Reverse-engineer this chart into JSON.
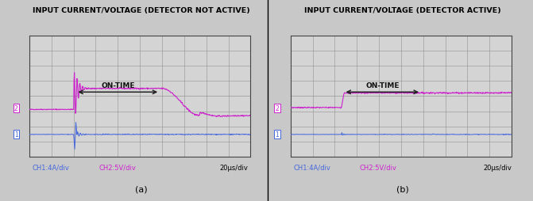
{
  "title_a": "INPUT CURRENT/VOLTAGE (DETECTOR NOT ACTIVE)",
  "title_b": "INPUT CURRENT/VOLTAGE (DETECTOR ACTIVE)",
  "subtitle_a": "(a)",
  "subtitle_b": "(b)",
  "fig_bg": "#c8c8c8",
  "plot_bg": "#d4d4d4",
  "grid_color": "#888888",
  "ch1_color": "#4466dd",
  "ch2_color": "#cc22cc",
  "ch1_label": "CH1:4A/div",
  "ch2_label": "CH2:5V/div",
  "time_label": "20μs/div",
  "on_time_label": "ON-TIME",
  "n_points": 600,
  "figsize": [
    6.71,
    2.55
  ],
  "dpi": 100
}
